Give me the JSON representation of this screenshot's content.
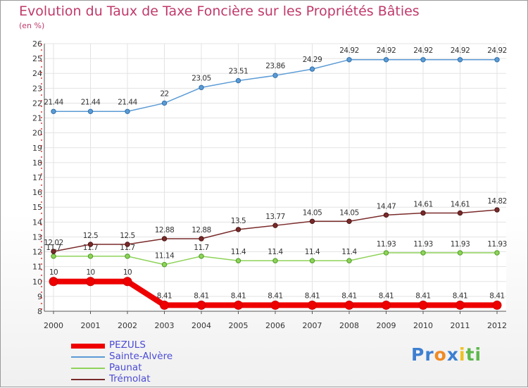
{
  "chart_data": {
    "type": "line",
    "title": "Evolution du Taux de Taxe Foncière sur les Propriétés Bâties",
    "ylabel": "(en %)",
    "xlabel": "",
    "x": [
      "2000",
      "2001",
      "2002",
      "2003",
      "2004",
      "2005",
      "2006",
      "2007",
      "2008",
      "2009",
      "2010",
      "2011",
      "2012"
    ],
    "ylim": [
      8,
      26
    ],
    "yticks": [
      8,
      9,
      10,
      11,
      12,
      13,
      14,
      15,
      16,
      17,
      18,
      19,
      20,
      21,
      22,
      23,
      24,
      25,
      26
    ],
    "series": [
      {
        "name": "PEZULS",
        "color": "#ee0000",
        "values": [
          10,
          10,
          10,
          8.41,
          8.41,
          8.41,
          8.41,
          8.41,
          8.41,
          8.41,
          8.41,
          8.41,
          8.41
        ],
        "labels": [
          "10",
          "10",
          "10",
          "8.41",
          "8.41",
          "8.41",
          "8.41",
          "8.41",
          "8.41",
          "8.41",
          "8.41",
          "8.41",
          "8.41"
        ]
      },
      {
        "name": "Sainte-Alvère",
        "color": "#5b9bd5",
        "values": [
          21.44,
          21.44,
          21.44,
          22,
          23.05,
          23.51,
          23.86,
          24.29,
          24.92,
          24.92,
          24.92,
          24.92,
          24.92
        ],
        "labels": [
          "21.44",
          "21.44",
          "21.44",
          "22",
          "23.05",
          "23.51",
          "23.86",
          "24.29",
          "24.92",
          "24.92",
          "24.92",
          "24.92",
          "24.92"
        ]
      },
      {
        "name": "Paunat",
        "color": "#8fd35a",
        "values": [
          11.7,
          11.7,
          11.7,
          11.14,
          11.7,
          11.4,
          11.4,
          11.4,
          11.4,
          11.93,
          11.93,
          11.93,
          11.93
        ],
        "labels": [
          "11.7",
          "11.7",
          "11.7",
          "11.14",
          "11.7",
          "11.4",
          "11.4",
          "11.4",
          "11.4",
          "11.93",
          "11.93",
          "11.93",
          "11.93"
        ]
      },
      {
        "name": "Trémolat",
        "color": "#7a2a2a",
        "values": [
          12.02,
          12.5,
          12.5,
          12.88,
          12.88,
          13.5,
          13.77,
          14.05,
          14.05,
          14.47,
          14.61,
          14.61,
          14.82
        ],
        "labels": [
          "12.02",
          "12.5",
          "12.5",
          "12.88",
          "12.88",
          "13.5",
          "13.77",
          "14.05",
          "14.05",
          "14.47",
          "14.61",
          "14.61",
          "14.82"
        ]
      }
    ],
    "grid": true,
    "legend": "bottom-left"
  },
  "logo": {
    "parts": [
      "Pr",
      "o",
      "x",
      "i",
      "ti"
    ],
    "colors": [
      "#3d7fd1",
      "#f08a24",
      "#3d7fd1",
      "#f0c020",
      "#5cb84a"
    ]
  }
}
